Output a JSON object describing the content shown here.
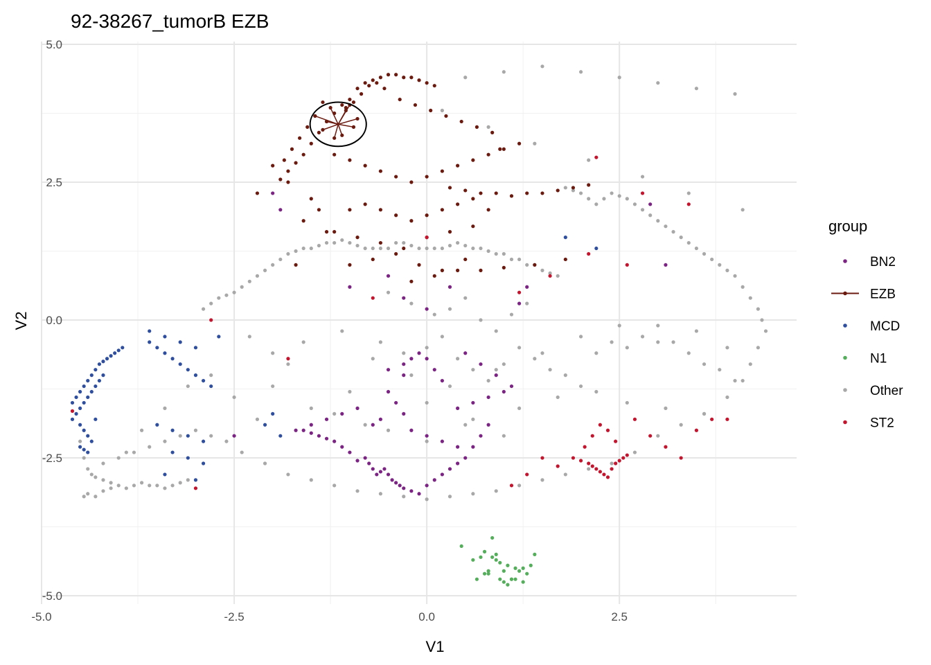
{
  "chart_data": {
    "type": "scatter",
    "title": "92-38267_tumorB EZB",
    "xlabel": "V1",
    "ylabel": "V2",
    "xlim": [
      -5.0,
      4.8
    ],
    "ylim": [
      -5.15,
      5.05
    ],
    "xticks": [
      -5.0,
      -2.5,
      0.0,
      2.5
    ],
    "xtick_labels": [
      "-5.0",
      "-2.5",
      "0.0",
      "2.5"
    ],
    "yticks": [
      5.0,
      2.5,
      0.0,
      -2.5,
      -5.0
    ],
    "ytick_labels": [
      "5.0",
      "2.5",
      "0.0",
      "-2.5",
      "-5.0"
    ],
    "grid": true,
    "legend": {
      "title": "group",
      "position": "right",
      "items": [
        {
          "label": "BN2",
          "color": "#7B2483",
          "style": "point"
        },
        {
          "label": "EZB",
          "color": "#6B1A0F",
          "style": "line-point"
        },
        {
          "label": "MCD",
          "color": "#2F4F9E",
          "style": "point"
        },
        {
          "label": "N1",
          "color": "#55AE5B",
          "style": "point"
        },
        {
          "label": "Other",
          "color": "#A8A8A8",
          "style": "point"
        },
        {
          "label": "ST2",
          "color": "#C4152E",
          "style": "point"
        }
      ]
    },
    "highlight": {
      "group": "EZB",
      "center": [
        -1.15,
        3.55
      ],
      "spokes_to": [
        [
          -1.45,
          3.7
        ],
        [
          -1.35,
          3.45
        ],
        [
          -1.25,
          3.85
        ],
        [
          -1.2,
          3.3
        ],
        [
          -1.05,
          3.8
        ],
        [
          -0.95,
          3.5
        ],
        [
          -0.9,
          3.65
        ],
        [
          -1.3,
          3.6
        ],
        [
          -1.1,
          3.35
        ],
        [
          -1.0,
          3.9
        ]
      ]
    },
    "series": [
      {
        "name": "Other",
        "color": "#A8A8A8",
        "x": [
          -4.5,
          -4.45,
          -4.4,
          -4.35,
          -4.3,
          -4.2,
          -4.1,
          -4.0,
          -3.9,
          -3.8,
          -3.7,
          -3.6,
          -3.5,
          -3.4,
          -3.3,
          -3.2,
          -3.1,
          -4.45,
          -4.4,
          -4.3,
          -4.2,
          -4.1,
          -2.9,
          -2.8,
          -2.7,
          -2.6,
          -2.5,
          -2.4,
          -2.3,
          -2.2,
          -2.1,
          -2.0,
          -1.9,
          -1.8,
          -1.7,
          -1.6,
          -1.5,
          -1.4,
          -1.3,
          -1.2,
          -1.1,
          -1.0,
          -0.9,
          -0.8,
          -0.7,
          -0.6,
          -0.5,
          -0.4,
          -0.3,
          -0.2,
          -0.1,
          0.0,
          0.1,
          0.2,
          0.3,
          0.4,
          0.5,
          0.6,
          0.7,
          0.8,
          0.9,
          1.0,
          1.1,
          1.2,
          1.3,
          1.4,
          1.5,
          1.6,
          1.7,
          1.8,
          1.9,
          2.0,
          2.1,
          2.2,
          2.3,
          2.4,
          2.5,
          2.6,
          2.7,
          2.8,
          2.9,
          3.0,
          3.1,
          3.2,
          3.3,
          3.4,
          3.5,
          3.6,
          3.7,
          3.8,
          3.9,
          4.0,
          4.1,
          4.2,
          4.3,
          4.35,
          4.4,
          4.3,
          4.2,
          4.1,
          3.9,
          3.6,
          3.3,
          3.0,
          2.7,
          2.4,
          2.1,
          1.8,
          1.5,
          1.2,
          0.9,
          0.6,
          0.3,
          0.0,
          -0.3,
          -0.6,
          -0.9,
          -1.2,
          -1.5,
          -1.8,
          -2.1,
          -2.4,
          -2.6,
          -2.8,
          -3.0,
          -3.2,
          -3.4,
          -3.6,
          -3.8,
          -4.0,
          -4.2,
          -0.5,
          -0.2,
          0.1,
          0.3,
          0.5,
          0.7,
          0.9,
          1.1,
          1.3,
          -0.6,
          -0.3,
          0.0,
          0.2,
          0.4,
          0.6,
          0.8,
          1.0,
          1.2,
          1.4,
          1.6,
          1.8,
          2.0,
          2.2,
          2.4,
          2.6,
          2.8,
          3.0,
          3.2,
          3.4,
          3.6,
          3.8,
          4.0,
          0.5,
          1.0,
          1.5,
          2.0,
          2.5,
          3.0,
          3.5,
          4.0,
          0.2,
          0.8,
          1.4,
          2.1,
          2.8,
          3.4,
          4.1,
          -1.0,
          -1.5,
          -2.0,
          -1.8,
          -1.2,
          -0.8,
          0.0,
          0.6,
          1.2,
          1.7,
          2.2,
          2.6,
          3.1,
          3.6,
          -2.3,
          -2.0,
          -1.6,
          -1.1,
          -0.7,
          -0.2,
          0.3,
          0.9,
          1.5,
          2.0,
          2.5,
          3.0,
          3.5,
          3.9,
          -0.5,
          0.0,
          0.5,
          1.0,
          -2.8,
          -2.5,
          -2.2,
          -3.1,
          -3.4,
          -3.7,
          -3.9
        ],
        "y": [
          -2.2,
          -2.5,
          -2.7,
          -2.8,
          -2.85,
          -2.9,
          -2.95,
          -3.0,
          -3.05,
          -3.0,
          -2.95,
          -3.0,
          -3.0,
          -3.05,
          -3.0,
          -2.95,
          -2.9,
          -3.2,
          -3.15,
          -3.2,
          -3.1,
          -3.05,
          0.2,
          0.3,
          0.4,
          0.45,
          0.5,
          0.6,
          0.7,
          0.8,
          0.9,
          1.0,
          1.1,
          1.2,
          1.25,
          1.3,
          1.3,
          1.35,
          1.4,
          1.4,
          1.45,
          1.4,
          1.35,
          1.3,
          1.3,
          1.3,
          1.3,
          1.4,
          1.4,
          1.35,
          1.3,
          1.3,
          1.3,
          1.3,
          1.35,
          1.4,
          1.35,
          1.3,
          1.3,
          1.25,
          1.2,
          1.2,
          1.1,
          1.1,
          1.0,
          1.0,
          0.9,
          0.85,
          0.8,
          2.4,
          2.35,
          2.3,
          2.2,
          2.1,
          2.2,
          2.3,
          2.25,
          2.2,
          2.1,
          2.0,
          1.9,
          1.8,
          1.7,
          1.6,
          1.5,
          1.4,
          1.3,
          1.2,
          1.1,
          1.0,
          0.9,
          0.8,
          0.6,
          0.4,
          0.2,
          0.0,
          -0.2,
          -0.5,
          -0.8,
          -1.1,
          -1.4,
          -1.7,
          -1.9,
          -2.1,
          -2.4,
          -2.6,
          -2.7,
          -2.8,
          -2.9,
          -3.0,
          -3.1,
          -3.15,
          -3.2,
          -3.25,
          -3.2,
          -3.15,
          -3.1,
          -3.0,
          -2.9,
          -2.8,
          -2.6,
          -2.4,
          -2.2,
          -2.1,
          -2.0,
          -2.1,
          -2.2,
          -2.3,
          -2.4,
          -2.5,
          -2.6,
          0.5,
          0.3,
          0.1,
          0.2,
          0.4,
          0.0,
          -0.2,
          0.1,
          0.3,
          -0.4,
          -0.6,
          -0.5,
          -0.3,
          -0.7,
          -0.9,
          -1.1,
          -0.8,
          -0.5,
          -0.7,
          -0.9,
          -1.0,
          -1.2,
          -0.6,
          -0.4,
          -0.5,
          -0.3,
          -0.1,
          -0.4,
          -0.6,
          -0.8,
          -0.9,
          -1.1,
          4.4,
          4.5,
          4.6,
          4.5,
          4.4,
          4.3,
          4.2,
          4.1,
          3.8,
          3.5,
          3.2,
          2.9,
          2.6,
          2.3,
          2.0,
          -1.3,
          -1.6,
          -1.2,
          -0.8,
          -1.7,
          -1.9,
          -1.5,
          -1.8,
          -1.6,
          -1.4,
          -1.3,
          -1.5,
          -1.6,
          -1.7,
          -0.3,
          -0.6,
          -0.4,
          -0.2,
          -0.7,
          -1.0,
          -1.2,
          -0.9,
          -0.6,
          -0.3,
          -0.1,
          -0.4,
          -0.2,
          -0.5,
          -2.0,
          -2.2,
          -1.9,
          -2.1,
          -1.0,
          -1.4,
          -1.8,
          -1.2,
          -1.6,
          -2.0,
          -2.4
        ]
      },
      {
        "name": "EZB",
        "color": "#6B1A0F",
        "x": [
          -0.8,
          -0.7,
          -0.6,
          -0.5,
          -0.4,
          -0.3,
          -0.2,
          -0.1,
          0.0,
          0.1,
          -0.9,
          -1.0,
          -1.1,
          -1.2,
          -1.3,
          -1.4,
          -1.5,
          -1.6,
          -1.7,
          -1.8,
          -1.9,
          -1.85,
          -1.75,
          -1.65,
          -1.55,
          -1.45,
          -1.35,
          -0.85,
          -0.95,
          -1.05,
          -0.75,
          -0.65,
          -0.55,
          -0.35,
          -0.15,
          0.05,
          0.25,
          0.45,
          0.65,
          0.85,
          0.95,
          0.3,
          0.5,
          0.7,
          0.9,
          1.1,
          1.3,
          1.5,
          1.7,
          1.9,
          2.1,
          -1.2,
          -1.0,
          -0.8,
          -0.6,
          -0.4,
          -0.2,
          0.0,
          0.2,
          0.4,
          0.6,
          0.8,
          1.0,
          1.2,
          -1.0,
          -0.8,
          -0.6,
          -0.4,
          -0.2,
          0.0,
          0.2,
          0.4,
          0.6,
          0.8,
          -1.2,
          -0.9,
          -0.6,
          -0.3,
          0.0,
          0.3,
          0.6,
          -1.0,
          -0.7,
          -0.4,
          -0.1,
          0.2,
          0.5,
          -1.5,
          -1.8,
          -2.0,
          -2.2,
          -1.4,
          -1.6,
          -1.3,
          -1.7,
          -0.2,
          0.1,
          0.4,
          0.7,
          1.0,
          1.4,
          1.8
        ],
        "y": [
          4.3,
          4.35,
          4.4,
          4.45,
          4.45,
          4.4,
          4.4,
          4.35,
          4.3,
          4.25,
          4.2,
          4.0,
          3.9,
          3.75,
          3.6,
          3.4,
          3.2,
          3.0,
          2.85,
          2.7,
          2.55,
          2.9,
          3.1,
          3.3,
          3.5,
          3.7,
          3.95,
          4.1,
          3.95,
          3.85,
          4.25,
          4.3,
          4.2,
          4.0,
          3.9,
          3.8,
          3.7,
          3.6,
          3.5,
          3.4,
          3.1,
          2.4,
          2.35,
          2.3,
          2.3,
          2.25,
          2.3,
          2.3,
          2.35,
          2.4,
          2.45,
          3.0,
          2.9,
          2.8,
          2.7,
          2.6,
          2.5,
          2.6,
          2.7,
          2.8,
          2.9,
          3.0,
          3.1,
          3.2,
          2.0,
          2.1,
          2.0,
          1.9,
          1.8,
          1.9,
          2.0,
          2.1,
          2.2,
          2.0,
          1.6,
          1.5,
          1.4,
          1.3,
          1.5,
          1.6,
          1.7,
          1.0,
          1.1,
          1.2,
          1.0,
          0.9,
          1.1,
          2.2,
          2.5,
          2.8,
          2.3,
          2.0,
          1.8,
          1.6,
          1.0,
          0.7,
          0.8,
          0.9,
          0.9,
          0.95,
          1.0,
          1.1
        ]
      },
      {
        "name": "BN2",
        "color": "#7B2483",
        "x": [
          -0.8,
          -0.75,
          -0.7,
          -0.65,
          -0.6,
          -0.55,
          -0.5,
          -0.45,
          -0.4,
          -0.35,
          -0.3,
          -0.9,
          -1.0,
          -1.1,
          -1.2,
          -1.3,
          -1.4,
          -1.5,
          -1.6,
          -0.2,
          -0.1,
          0.0,
          0.1,
          0.2,
          0.3,
          0.4,
          0.5,
          0.6,
          0.7,
          0.8,
          -0.3,
          -0.2,
          -0.1,
          0.0,
          0.1,
          0.2,
          -0.5,
          -0.4,
          -0.3,
          -0.6,
          -0.7,
          0.4,
          0.6,
          0.8,
          1.0,
          -0.2,
          0.0,
          0.2,
          0.4,
          -0.9,
          -1.1,
          -1.3,
          -1.5,
          -1.7,
          -0.5,
          -0.3,
          0.5,
          0.7,
          0.9,
          1.1,
          -1.9,
          -2.0,
          1.2,
          1.3,
          -0.5,
          -0.3,
          0.0,
          0.3,
          2.9,
          3.1,
          -2.5,
          -1.0
        ],
        "y": [
          -2.5,
          -2.6,
          -2.7,
          -2.8,
          -2.75,
          -2.7,
          -2.8,
          -2.9,
          -2.95,
          -3.0,
          -3.05,
          -2.55,
          -2.4,
          -2.3,
          -2.2,
          -2.15,
          -2.1,
          -2.05,
          -2.0,
          -3.1,
          -3.15,
          -3.0,
          -2.9,
          -2.8,
          -2.7,
          -2.6,
          -2.5,
          -2.3,
          -2.1,
          -1.9,
          -0.8,
          -0.7,
          -0.6,
          -0.7,
          -0.9,
          -1.1,
          -1.3,
          -1.5,
          -1.7,
          -1.8,
          -1.9,
          -1.6,
          -1.5,
          -1.4,
          -1.3,
          -2.0,
          -2.1,
          -2.2,
          -2.3,
          -1.6,
          -1.7,
          -1.8,
          -1.9,
          -2.0,
          -0.9,
          -1.0,
          -0.6,
          -0.8,
          -1.0,
          -1.2,
          2.0,
          2.3,
          0.3,
          0.6,
          0.8,
          0.4,
          0.2,
          0.6,
          2.1,
          1.0,
          -2.1,
          0.6
        ]
      },
      {
        "name": "MCD",
        "color": "#2F4F9E",
        "x": [
          -4.6,
          -4.55,
          -4.5,
          -4.45,
          -4.4,
          -4.35,
          -4.3,
          -4.25,
          -4.2,
          -4.15,
          -4.1,
          -4.05,
          -4.0,
          -3.95,
          -4.5,
          -4.45,
          -4.4,
          -4.35,
          -4.3,
          -4.25,
          -4.2,
          -4.6,
          -4.55,
          -4.5,
          -4.45,
          -4.4,
          -4.35,
          -4.5,
          -4.45,
          -4.4,
          -3.6,
          -3.5,
          -3.4,
          -3.3,
          -3.2,
          -3.1,
          -3.0,
          -2.9,
          -2.8,
          -3.5,
          -3.3,
          -3.1,
          -2.9,
          -3.3,
          -3.1,
          -2.9,
          -3.6,
          -3.4,
          -3.2,
          -3.0,
          -2.0,
          -2.1,
          -1.9,
          1.8,
          2.2,
          -3.4,
          -3.0,
          -2.7,
          -4.3
        ],
        "y": [
          -1.5,
          -1.4,
          -1.3,
          -1.2,
          -1.1,
          -1.0,
          -0.9,
          -0.8,
          -0.75,
          -0.7,
          -0.65,
          -0.6,
          -0.55,
          -0.5,
          -1.6,
          -1.5,
          -1.4,
          -1.3,
          -1.2,
          -1.1,
          -1.0,
          -1.8,
          -1.7,
          -1.9,
          -2.0,
          -2.1,
          -2.2,
          -2.3,
          -2.35,
          -2.4,
          -0.4,
          -0.5,
          -0.6,
          -0.7,
          -0.8,
          -0.9,
          -1.0,
          -1.1,
          -1.2,
          -1.9,
          -2.0,
          -2.1,
          -2.2,
          -2.4,
          -2.5,
          -2.6,
          -0.2,
          -0.3,
          -0.4,
          -0.5,
          -1.7,
          -1.9,
          -2.1,
          1.5,
          1.3,
          -2.8,
          -2.9,
          -0.3,
          -1.8
        ]
      },
      {
        "name": "N1",
        "color": "#55AE5B",
        "x": [
          0.45,
          0.6,
          0.7,
          0.75,
          0.8,
          0.85,
          0.9,
          0.95,
          1.0,
          1.05,
          1.1,
          1.15,
          1.2,
          1.25,
          1.3,
          1.35,
          1.4,
          0.65,
          0.75,
          0.85,
          0.95,
          1.05,
          1.15,
          1.25,
          0.8,
          0.9,
          1.0,
          1.1
        ],
        "y": [
          -4.1,
          -4.35,
          -4.3,
          -4.2,
          -4.55,
          -4.3,
          -4.25,
          -4.7,
          -4.75,
          -4.45,
          -4.7,
          -4.5,
          -4.55,
          -4.75,
          -4.6,
          -4.45,
          -4.25,
          -4.7,
          -4.6,
          -3.95,
          -4.4,
          -4.8,
          -4.7,
          -4.5,
          -4.6,
          -4.35,
          -4.55,
          -4.7
        ]
      },
      {
        "name": "ST2",
        "color": "#C4152E",
        "x": [
          1.9,
          2.0,
          2.1,
          2.15,
          2.2,
          2.25,
          2.3,
          2.35,
          2.4,
          2.45,
          2.5,
          2.55,
          2.6,
          2.05,
          2.15,
          2.25,
          2.35,
          2.45,
          2.7,
          2.9,
          3.1,
          3.3,
          3.5,
          3.7,
          3.9,
          1.5,
          1.7,
          1.3,
          1.1,
          -4.6,
          -2.8,
          -1.8,
          -0.7,
          0.0,
          1.2,
          1.6,
          2.1,
          2.6,
          3.4,
          -3.0,
          2.8,
          2.2
        ],
        "y": [
          -2.5,
          -2.55,
          -2.6,
          -2.65,
          -2.7,
          -2.75,
          -2.8,
          -2.85,
          -2.7,
          -2.6,
          -2.55,
          -2.5,
          -2.45,
          -2.3,
          -2.1,
          -1.9,
          -2.0,
          -2.2,
          -1.8,
          -2.1,
          -2.3,
          -2.5,
          -2.0,
          -1.8,
          -1.8,
          -2.5,
          -2.65,
          -2.8,
          -3.0,
          -1.65,
          0.0,
          -0.7,
          0.4,
          1.5,
          0.5,
          0.8,
          1.2,
          1.0,
          2.1,
          -3.05,
          2.3,
          2.95
        ]
      }
    ]
  }
}
